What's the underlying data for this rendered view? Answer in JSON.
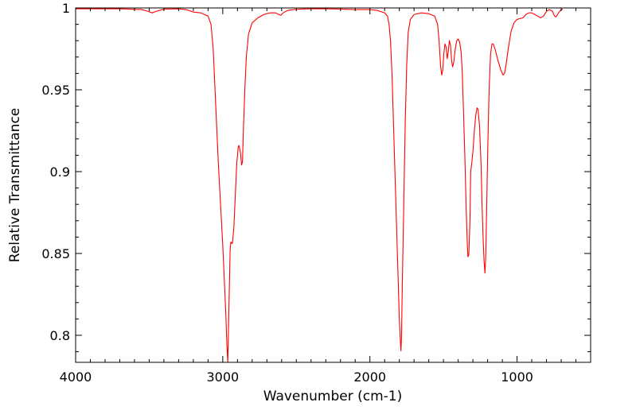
{
  "chart_data": {
    "type": "line",
    "title": "",
    "xlabel": "Wavenumber (cm-1)",
    "ylabel": "Relative Transmittance",
    "xlim": [
      4000,
      500
    ],
    "ylim": [
      0.7835,
      1.0
    ],
    "x_reversed": true,
    "grid": false,
    "legend": "none",
    "x_ticks": [
      {
        "value": 4000,
        "label": "4000"
      },
      {
        "value": 3000,
        "label": "3000"
      },
      {
        "value": 2000,
        "label": "2000"
      },
      {
        "value": 1000,
        "label": "1000"
      }
    ],
    "y_ticks": [
      {
        "value": 1.0,
        "label": "1"
      },
      {
        "value": 0.95,
        "label": "0.95"
      },
      {
        "value": 0.9,
        "label": "0.9"
      },
      {
        "value": 0.85,
        "label": "0.85"
      },
      {
        "value": 0.8,
        "label": "0.8"
      }
    ],
    "x_minor_step": 100,
    "y_minor_step": 0.01,
    "series": [
      {
        "color": "#ff0000",
        "points": [
          [
            4000,
            0.9995
          ],
          [
            3700,
            0.9995
          ],
          [
            3550,
            0.999
          ],
          [
            3510,
            0.998
          ],
          [
            3480,
            0.997
          ],
          [
            3450,
            0.998
          ],
          [
            3400,
            0.9993
          ],
          [
            3300,
            0.9995
          ],
          [
            3250,
            0.999
          ],
          [
            3200,
            0.9975
          ],
          [
            3150,
            0.997
          ],
          [
            3100,
            0.995
          ],
          [
            3080,
            0.99
          ],
          [
            3065,
            0.975
          ],
          [
            3055,
            0.955
          ],
          [
            3045,
            0.935
          ],
          [
            3030,
            0.905
          ],
          [
            3015,
            0.88
          ],
          [
            3000,
            0.855
          ],
          [
            2990,
            0.835
          ],
          [
            2980,
            0.815
          ],
          [
            2972,
            0.794
          ],
          [
            2966,
            0.7835
          ],
          [
            2962,
            0.8
          ],
          [
            2955,
            0.83
          ],
          [
            2950,
            0.852
          ],
          [
            2945,
            0.857
          ],
          [
            2935,
            0.856
          ],
          [
            2925,
            0.865
          ],
          [
            2915,
            0.885
          ],
          [
            2905,
            0.905
          ],
          [
            2895,
            0.915
          ],
          [
            2890,
            0.916
          ],
          [
            2880,
            0.912
          ],
          [
            2872,
            0.904
          ],
          [
            2866,
            0.906
          ],
          [
            2860,
            0.925
          ],
          [
            2850,
            0.95
          ],
          [
            2840,
            0.97
          ],
          [
            2825,
            0.984
          ],
          [
            2800,
            0.991
          ],
          [
            2760,
            0.994
          ],
          [
            2720,
            0.996
          ],
          [
            2680,
            0.997
          ],
          [
            2640,
            0.997
          ],
          [
            2620,
            0.996
          ],
          [
            2605,
            0.9955
          ],
          [
            2590,
            0.997
          ],
          [
            2560,
            0.9985
          ],
          [
            2500,
            0.9992
          ],
          [
            2400,
            0.9995
          ],
          [
            2300,
            0.9995
          ],
          [
            2200,
            0.9993
          ],
          [
            2100,
            0.999
          ],
          [
            2000,
            0.999
          ],
          [
            1950,
            0.9985
          ],
          [
            1900,
            0.997
          ],
          [
            1880,
            0.995
          ],
          [
            1870,
            0.99
          ],
          [
            1860,
            0.98
          ],
          [
            1850,
            0.96
          ],
          [
            1840,
            0.93
          ],
          [
            1830,
            0.9
          ],
          [
            1820,
            0.87
          ],
          [
            1810,
            0.84
          ],
          [
            1800,
            0.81
          ],
          [
            1795,
            0.8
          ],
          [
            1789,
            0.7905
          ],
          [
            1785,
            0.8
          ],
          [
            1780,
            0.83
          ],
          [
            1770,
            0.88
          ],
          [
            1760,
            0.93
          ],
          [
            1750,
            0.965
          ],
          [
            1740,
            0.985
          ],
          [
            1725,
            0.993
          ],
          [
            1700,
            0.996
          ],
          [
            1650,
            0.997
          ],
          [
            1600,
            0.9965
          ],
          [
            1560,
            0.995
          ],
          [
            1540,
            0.99
          ],
          [
            1530,
            0.98
          ],
          [
            1520,
            0.965
          ],
          [
            1512,
            0.959
          ],
          [
            1505,
            0.962
          ],
          [
            1498,
            0.972
          ],
          [
            1490,
            0.978
          ],
          [
            1482,
            0.976
          ],
          [
            1475,
            0.969
          ],
          [
            1468,
            0.973
          ],
          [
            1460,
            0.98
          ],
          [
            1452,
            0.977
          ],
          [
            1445,
            0.968
          ],
          [
            1438,
            0.964
          ],
          [
            1430,
            0.967
          ],
          [
            1420,
            0.975
          ],
          [
            1410,
            0.98
          ],
          [
            1400,
            0.981
          ],
          [
            1390,
            0.979
          ],
          [
            1380,
            0.973
          ],
          [
            1372,
            0.96
          ],
          [
            1365,
            0.94
          ],
          [
            1355,
            0.91
          ],
          [
            1345,
            0.875
          ],
          [
            1338,
            0.856
          ],
          [
            1334,
            0.848
          ],
          [
            1328,
            0.849
          ],
          [
            1320,
            0.87
          ],
          [
            1315,
            0.9
          ],
          [
            1308,
            0.905
          ],
          [
            1300,
            0.912
          ],
          [
            1290,
            0.925
          ],
          [
            1280,
            0.935
          ],
          [
            1272,
            0.939
          ],
          [
            1265,
            0.938
          ],
          [
            1255,
            0.928
          ],
          [
            1245,
            0.905
          ],
          [
            1238,
            0.88
          ],
          [
            1230,
            0.858
          ],
          [
            1224,
            0.845
          ],
          [
            1218,
            0.838
          ],
          [
            1213,
            0.848
          ],
          [
            1207,
            0.875
          ],
          [
            1200,
            0.91
          ],
          [
            1190,
            0.95
          ],
          [
            1180,
            0.972
          ],
          [
            1170,
            0.978
          ],
          [
            1162,
            0.978
          ],
          [
            1150,
            0.975
          ],
          [
            1130,
            0.968
          ],
          [
            1110,
            0.962
          ],
          [
            1095,
            0.959
          ],
          [
            1085,
            0.96
          ],
          [
            1075,
            0.965
          ],
          [
            1060,
            0.975
          ],
          [
            1040,
            0.986
          ],
          [
            1020,
            0.991
          ],
          [
            1000,
            0.993
          ],
          [
            980,
            0.9935
          ],
          [
            960,
            0.994
          ],
          [
            940,
            0.996
          ],
          [
            920,
            0.997
          ],
          [
            900,
            0.997
          ],
          [
            880,
            0.996
          ],
          [
            860,
            0.995
          ],
          [
            840,
            0.994
          ],
          [
            820,
            0.995
          ],
          [
            800,
            0.998
          ],
          [
            780,
            0.999
          ],
          [
            760,
            0.998
          ],
          [
            745,
            0.995
          ],
          [
            735,
            0.9945
          ],
          [
            725,
            0.996
          ],
          [
            710,
            0.998
          ],
          [
            700,
            0.999
          ],
          [
            690,
            0.9993
          ]
        ]
      }
    ]
  }
}
